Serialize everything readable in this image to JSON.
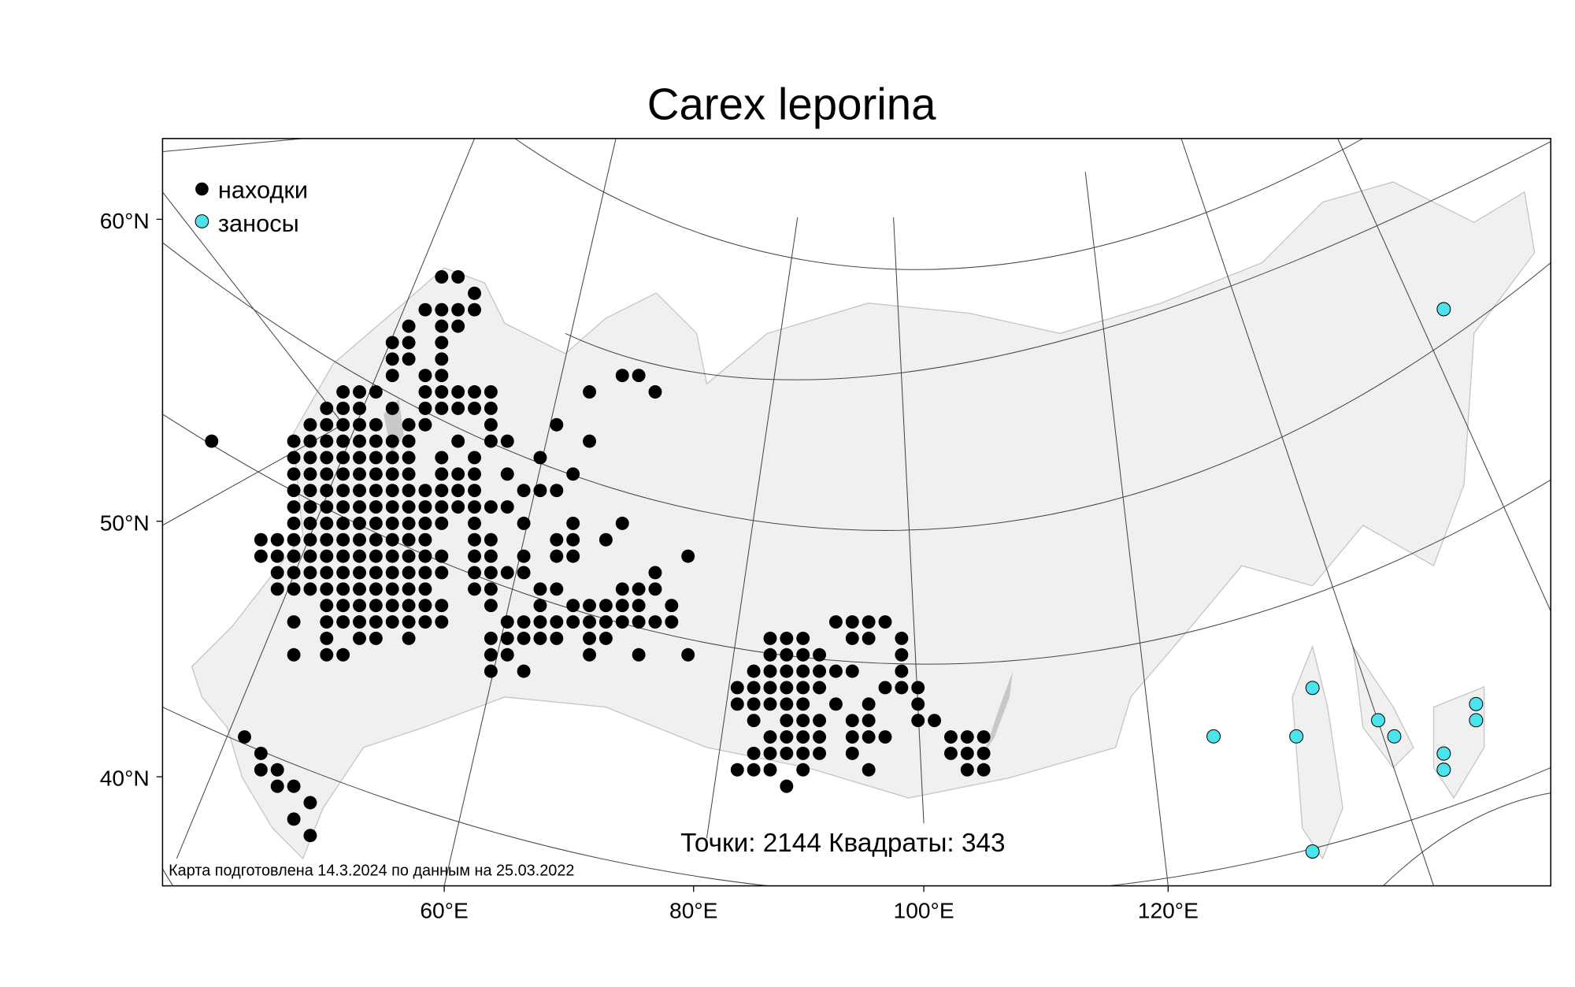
{
  "title": "Carex leporina",
  "legend": {
    "items": [
      {
        "label": "находки",
        "color": "#000000"
      },
      {
        "label": "заносы",
        "color": "#4be3ec"
      }
    ],
    "placement": "top-left"
  },
  "stats": "Точки: 2144 Квадраты: 343",
  "caption": "Карта подготовлена 14.3.2024 по данным на 25.03.2022",
  "axes": {
    "lat_labels": [
      "60°N",
      "50°N",
      "40°N"
    ],
    "lon_labels": [
      "60°E",
      "80°E",
      "100°E",
      "120°E"
    ]
  },
  "colors": {
    "land": "#f0f0f0",
    "water": "#c8c8c8",
    "border": "#bdbdbd",
    "graticule": "#444444"
  }
}
